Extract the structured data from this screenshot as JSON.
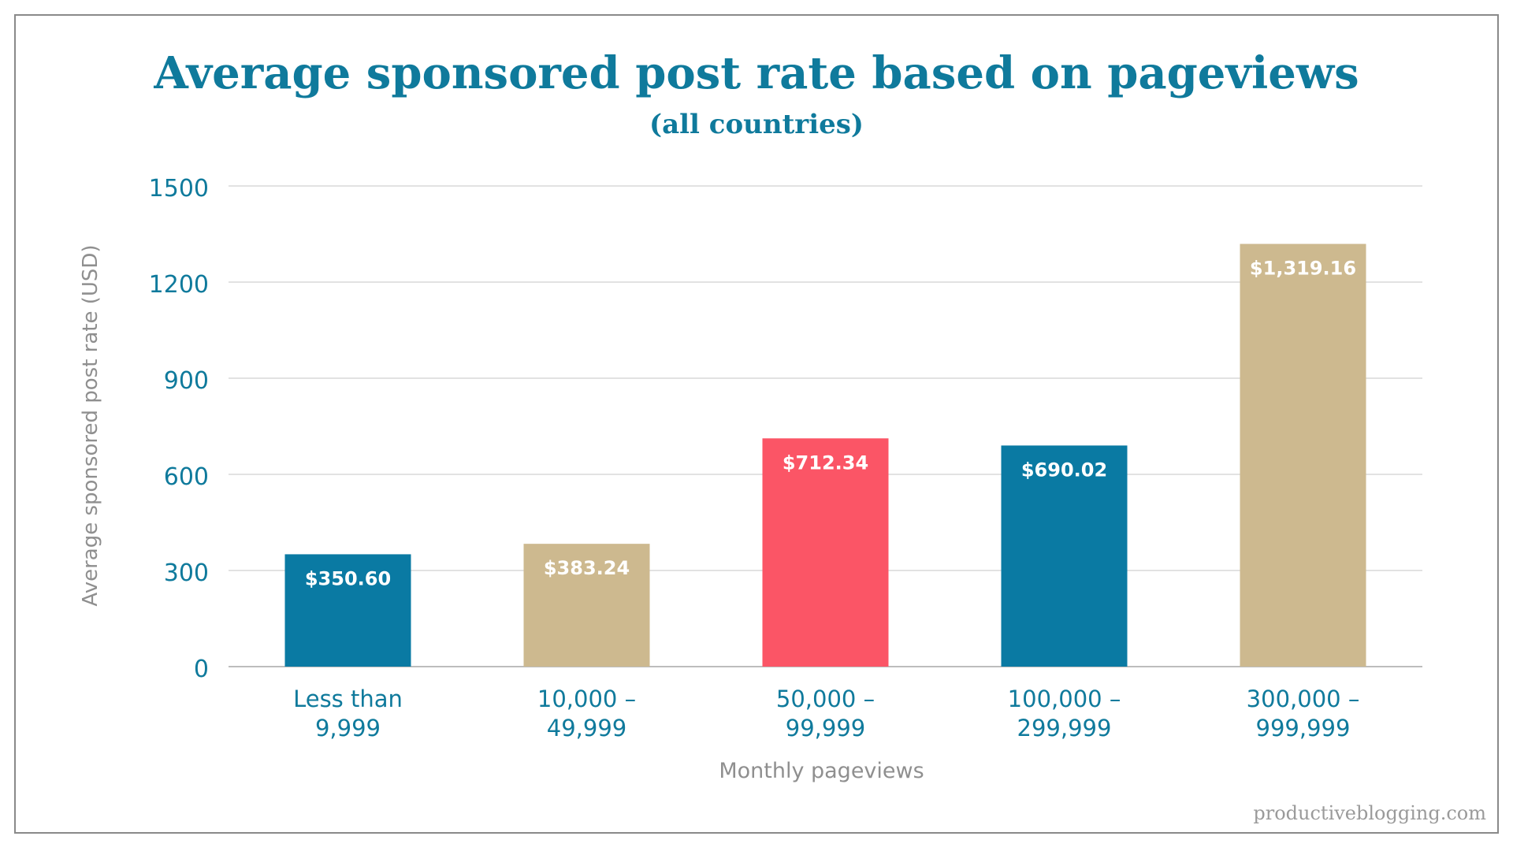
{
  "chart_data": {
    "type": "bar",
    "title": "Average sponsored post rate based on pageviews",
    "subtitle": "(all countries)",
    "xlabel": "Monthly pageviews",
    "ylabel": "Average sponsored post rate (USD)",
    "ylim": [
      0,
      1500
    ],
    "yticks": [
      "0",
      "300",
      "600",
      "900",
      "1200",
      "1500"
    ],
    "ytick_values": [
      0,
      300,
      600,
      900,
      1200,
      1500
    ],
    "grid": true,
    "categories": [
      [
        "Less than",
        "9,999"
      ],
      [
        "10,000 –",
        "49,999"
      ],
      [
        "50,000 –",
        "99,999"
      ],
      [
        "100,000 –",
        "299,999"
      ],
      [
        "300,000 –",
        "999,999"
      ]
    ],
    "values": [
      350.6,
      383.24,
      712.34,
      690.02,
      1319.16
    ],
    "data_labels": [
      "$350.60",
      "$383.24",
      "$712.34",
      "$690.02",
      "$1,319.16"
    ],
    "bar_colors": [
      "#0a7aa3",
      "#cdb98f",
      "#fb5566",
      "#0a7aa3",
      "#cdb98f"
    ],
    "colors": {
      "title": "#0f7a9c",
      "tick_label": "#0f7a9c",
      "axis_label": "#8f8f8f",
      "grid": "#d9d9d9",
      "data_label": "#ffffff"
    }
  },
  "watermark": "productiveblogging.com"
}
